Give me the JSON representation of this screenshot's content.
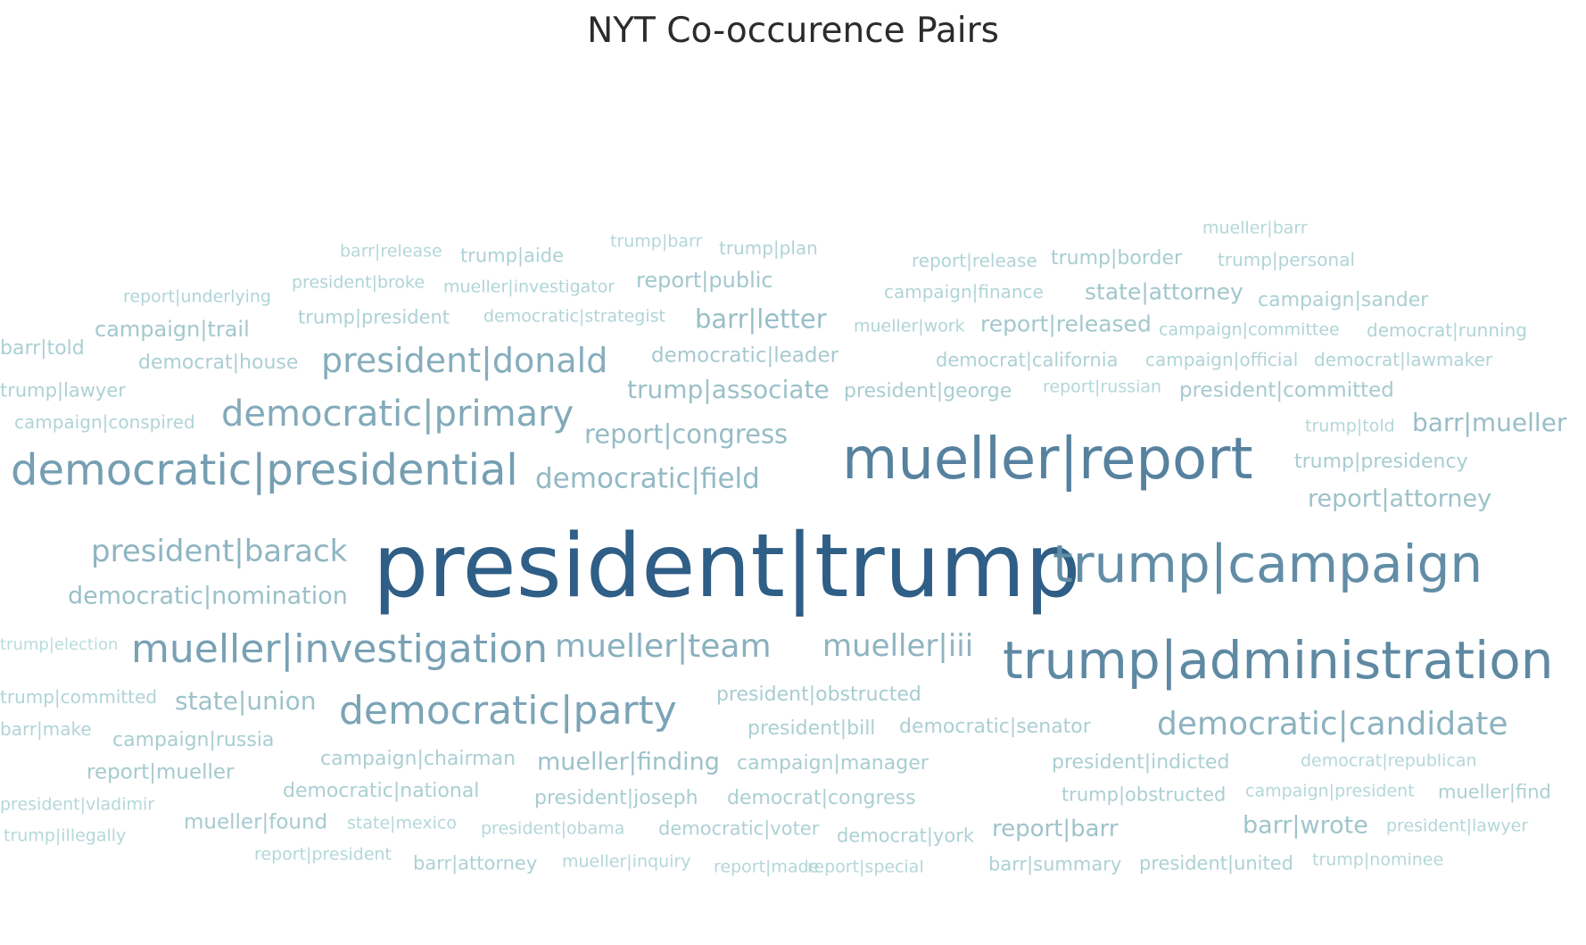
{
  "chart_data": {
    "type": "wordcloud",
    "title": "NYT Co-occurence Pairs",
    "color_scale": {
      "low": "#b9dcdc",
      "high": "#2f5e86"
    },
    "words": [
      {
        "text": "president|trump",
        "weight": 100
      },
      {
        "text": "mueller|report",
        "weight": 70
      },
      {
        "text": "trump|administration",
        "weight": 65
      },
      {
        "text": "trump|campaign",
        "weight": 62
      },
      {
        "text": "democratic|presidential",
        "weight": 50
      },
      {
        "text": "mueller|investigation",
        "weight": 48
      },
      {
        "text": "democratic|party",
        "weight": 46
      },
      {
        "text": "democratic|primary",
        "weight": 42
      },
      {
        "text": "president|donald",
        "weight": 40
      },
      {
        "text": "mueller|team",
        "weight": 38
      },
      {
        "text": "democratic|candidate",
        "weight": 37
      },
      {
        "text": "mueller|iii",
        "weight": 36
      },
      {
        "text": "president|barack",
        "weight": 35
      },
      {
        "text": "democratic|field",
        "weight": 33
      },
      {
        "text": "report|congress",
        "weight": 31
      },
      {
        "text": "barr|letter",
        "weight": 30
      },
      {
        "text": "barr|mueller",
        "weight": 30
      },
      {
        "text": "trump|associate",
        "weight": 29
      },
      {
        "text": "democratic|nomination",
        "weight": 29
      },
      {
        "text": "report|attorney",
        "weight": 28
      },
      {
        "text": "state|union",
        "weight": 28
      },
      {
        "text": "mueller|finding",
        "weight": 28
      },
      {
        "text": "barr|wrote",
        "weight": 27
      },
      {
        "text": "report|barr",
        "weight": 27
      },
      {
        "text": "state|attorney",
        "weight": 26
      },
      {
        "text": "report|released",
        "weight": 25
      },
      {
        "text": "report|public",
        "weight": 25
      },
      {
        "text": "campaign|trail",
        "weight": 25
      },
      {
        "text": "democratic|leader",
        "weight": 24
      },
      {
        "text": "report|mueller",
        "weight": 24
      },
      {
        "text": "mueller|found",
        "weight": 24
      },
      {
        "text": "president|committed",
        "weight": 24
      },
      {
        "text": "trump|presidency",
        "weight": 23
      },
      {
        "text": "campaign|manager",
        "weight": 23
      },
      {
        "text": "campaign|russia",
        "weight": 23
      },
      {
        "text": "trump|border",
        "weight": 23
      },
      {
        "text": "president|george",
        "weight": 23
      },
      {
        "text": "president|joseph",
        "weight": 23
      },
      {
        "text": "president|obstructed",
        "weight": 23
      },
      {
        "text": "president|bill",
        "weight": 22
      },
      {
        "text": "president|indicted",
        "weight": 22
      },
      {
        "text": "democratic|senator",
        "weight": 22
      },
      {
        "text": "democrat|house",
        "weight": 22
      },
      {
        "text": "campaign|chairman",
        "weight": 22
      },
      {
        "text": "democratic|national",
        "weight": 22
      },
      {
        "text": "barr|told",
        "weight": 22
      },
      {
        "text": "campaign|sander",
        "weight": 22
      },
      {
        "text": "democrat|congress",
        "weight": 22
      },
      {
        "text": "trump|obstructed",
        "weight": 22
      },
      {
        "text": "mueller|find",
        "weight": 22
      },
      {
        "text": "barr|summary",
        "weight": 21
      },
      {
        "text": "president|united",
        "weight": 21
      },
      {
        "text": "democrat|california",
        "weight": 21
      },
      {
        "text": "democrat|york",
        "weight": 21
      },
      {
        "text": "trump|lawyer",
        "weight": 21
      },
      {
        "text": "trump|aide",
        "weight": 21
      },
      {
        "text": "trump|president",
        "weight": 21
      },
      {
        "text": "democratic|voter",
        "weight": 21
      },
      {
        "text": "barr|attorney",
        "weight": 21
      },
      {
        "text": "barr|make",
        "weight": 20
      },
      {
        "text": "campaign|official",
        "weight": 20
      },
      {
        "text": "campaign|conspired",
        "weight": 20
      },
      {
        "text": "trump|committed",
        "weight": 20
      },
      {
        "text": "democrat|running",
        "weight": 20
      },
      {
        "text": "democrat|lawmaker",
        "weight": 20
      },
      {
        "text": "trump|personal",
        "weight": 20
      },
      {
        "text": "trump|plan",
        "weight": 20
      },
      {
        "text": "report|release",
        "weight": 20
      },
      {
        "text": "campaign|finance",
        "weight": 20
      },
      {
        "text": "campaign|committee",
        "weight": 20
      },
      {
        "text": "mueller|work",
        "weight": 20
      },
      {
        "text": "mueller|investigator",
        "weight": 20
      },
      {
        "text": "president|broke",
        "weight": 20
      },
      {
        "text": "report|underlying",
        "weight": 20
      },
      {
        "text": "democratic|strategist",
        "weight": 20
      },
      {
        "text": "mueller|barr",
        "weight": 19
      },
      {
        "text": "trump|barr",
        "weight": 19
      },
      {
        "text": "barr|release",
        "weight": 19
      },
      {
        "text": "report|russian",
        "weight": 19
      },
      {
        "text": "trump|told",
        "weight": 19
      },
      {
        "text": "president|vladimir",
        "weight": 19
      },
      {
        "text": "trump|illegally",
        "weight": 19
      },
      {
        "text": "state|mexico",
        "weight": 19
      },
      {
        "text": "president|obama",
        "weight": 19
      },
      {
        "text": "report|president",
        "weight": 19
      },
      {
        "text": "mueller|inquiry",
        "weight": 19
      },
      {
        "text": "report|made",
        "weight": 19
      },
      {
        "text": "report|special",
        "weight": 19
      },
      {
        "text": "trump|nominee",
        "weight": 19
      },
      {
        "text": "president|lawyer",
        "weight": 19
      },
      {
        "text": "campaign|president",
        "weight": 19
      },
      {
        "text": "democrat|republican",
        "weight": 19
      },
      {
        "text": "trump|election",
        "weight": 18
      }
    ]
  }
}
